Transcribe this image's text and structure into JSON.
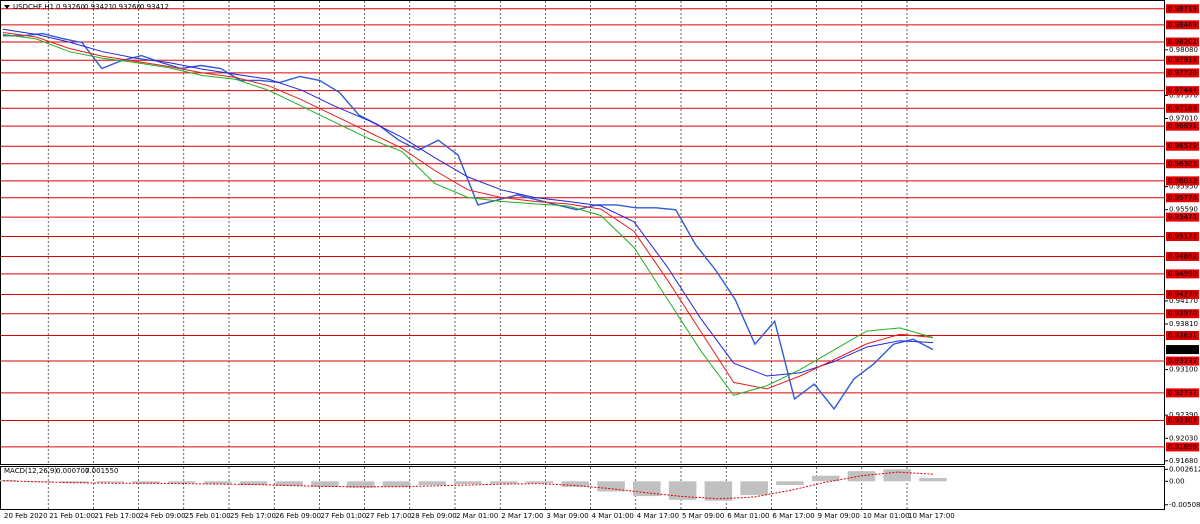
{
  "header": {
    "symbol": "USDCHF,H1",
    "ohlc": [
      "0.93260",
      "0.93421",
      "0.93260",
      "0.93412"
    ]
  },
  "time_labels": [
    "20 Feb 2020",
    "21 Feb 01:00",
    "21 Feb 17:00",
    "24 Feb 09:00",
    "25 Feb 01:00",
    "25 Feb 17:00",
    "26 Feb 09:00",
    "27 Feb 01:00",
    "27 Feb 17:00",
    "28 Feb 09:00",
    "2 Mar 01:00",
    "2 Mar 17:00",
    "3 Mar 09:00",
    "4 Mar 01:00",
    "4 Mar 17:00",
    "5 Mar 09:00",
    "6 Mar 01:00",
    "6 Mar 17:00",
    "9 Mar 09:00",
    "10 Mar 01:00",
    "10 Mar 17:00"
  ],
  "chart_data": [
    {
      "type": "line",
      "ylim": [
        0.9163,
        0.9884
      ],
      "yticks": [
        {
          "value": 0.9808,
          "label": "0.98080"
        },
        {
          "value": 0.9737,
          "label": "0.97370"
        },
        {
          "value": 0.9701,
          "label": "0.97010"
        },
        {
          "value": 0.9595,
          "label": "0.95950"
        },
        {
          "value": 0.9559,
          "label": "0.95590"
        },
        {
          "value": 0.9417,
          "label": "0.94170"
        },
        {
          "value": 0.9381,
          "label": "0.93810"
        },
        {
          "value": 0.931,
          "label": "0.93100"
        },
        {
          "value": 0.9239,
          "label": "0.92390"
        },
        {
          "value": 0.9203,
          "label": "0.92030"
        },
        {
          "value": 0.9168,
          "label": "0.91680"
        }
      ],
      "levels": [
        {
          "value": 0.98719,
          "label": "0.98719"
        },
        {
          "value": 0.98469,
          "label": "0.98469"
        },
        {
          "value": 0.98201,
          "label": "0.98201"
        },
        {
          "value": 0.97918,
          "label": "0.97918"
        },
        {
          "value": 0.9772,
          "label": "0.97720"
        },
        {
          "value": 0.97444,
          "label": "0.97444"
        },
        {
          "value": 0.97169,
          "label": "0.97169"
        },
        {
          "value": 0.96891,
          "label": "0.96891"
        },
        {
          "value": 0.96579,
          "label": "0.96579"
        },
        {
          "value": 0.96305,
          "label": "0.96305"
        },
        {
          "value": 0.96039,
          "label": "0.96039"
        },
        {
          "value": 0.95776,
          "label": "0.95776"
        },
        {
          "value": 0.95475,
          "label": "0.95475"
        },
        {
          "value": 0.95172,
          "label": "0.95172"
        },
        {
          "value": 0.94862,
          "label": "0.94862"
        },
        {
          "value": 0.9459,
          "label": "0.94590"
        },
        {
          "value": 0.9427,
          "label": "0.94270"
        },
        {
          "value": 0.9397,
          "label": "0.93970"
        },
        {
          "value": 0.93631,
          "label": "0.93631"
        },
        {
          "value": 0.93233,
          "label": "0.93233"
        },
        {
          "value": 0.92737,
          "label": "0.92737"
        },
        {
          "value": 0.92307,
          "label": "0.92307"
        },
        {
          "value": 0.91896,
          "label": "0.91896"
        }
      ],
      "level_color": "#e00000",
      "current_price": {
        "value": 0.93412,
        "label": "0.93412"
      },
      "series": [
        {
          "color": "#2f5bd3",
          "values": [
            0.983,
            0.983,
            0.98332,
            0.98254,
            0.98192,
            0.97789,
            0.97913,
            0.9799,
            0.97882,
            0.97789,
            0.97835,
            0.97789,
            0.97603,
            0.97603,
            0.97572,
            0.97665,
            0.97603,
            0.97417,
            0.9706,
            0.96905,
            0.96673,
            0.96518,
            0.96673,
            0.9644,
            0.95665,
            0.95743,
            0.9582,
            0.95743,
            0.95665,
            0.95588,
            0.95665,
            0.95665,
            0.95619,
            0.95619,
            0.95588,
            0.95045,
            0.94658,
            0.94193,
            0.93495,
            0.93852,
            0.92643,
            0.92875,
            0.92488,
            0.92953,
            0.93185,
            0.93495,
            0.93573,
            0.93412
          ]
        },
        {
          "color": "#2424e0",
          "values": [
            0.984,
            0.9832,
            0.982,
            0.9805,
            0.9795,
            0.9788,
            0.9778,
            0.977,
            0.9762,
            0.9745,
            0.972,
            0.9698,
            0.9672,
            0.964,
            0.961,
            0.959,
            0.9578,
            0.9572,
            0.9565,
            0.954,
            0.947,
            0.939,
            0.932,
            0.93,
            0.9305,
            0.9322,
            0.9345,
            0.9355,
            0.9352
          ]
        },
        {
          "color": "#e02020",
          "values": [
            0.9835,
            0.9828,
            0.981,
            0.9798,
            0.979,
            0.9782,
            0.9772,
            0.9765,
            0.9752,
            0.973,
            0.9705,
            0.968,
            0.9655,
            0.962,
            0.959,
            0.9578,
            0.9572,
            0.9568,
            0.956,
            0.9525,
            0.945,
            0.937,
            0.929,
            0.928,
            0.93,
            0.9325,
            0.935,
            0.9365,
            0.936
          ]
        },
        {
          "color": "#20b020",
          "values": [
            0.9832,
            0.9825,
            0.9805,
            0.9795,
            0.9788,
            0.978,
            0.9768,
            0.9762,
            0.9745,
            0.972,
            0.9695,
            0.967,
            0.965,
            0.96,
            0.9578,
            0.9572,
            0.9568,
            0.9565,
            0.955,
            0.95,
            0.942,
            0.934,
            0.927,
            0.9285,
            0.931,
            0.934,
            0.937,
            0.9375,
            0.936
          ]
        }
      ]
    },
    {
      "type": "bar",
      "title": "MACD(12,26,9)",
      "readouts": [
        "0.000707",
        "0.001550"
      ],
      "ylim": [
        -0.006,
        0.0031
      ],
      "yticks": [
        {
          "value": 0.002612,
          "label": "0.002612"
        },
        {
          "value": 0,
          "label": "0.00"
        },
        {
          "value": -0.005087,
          "label": "-0.005087"
        }
      ],
      "series": [
        {
          "color": "#c0c0c0",
          "values": [
            0.0003,
            -0.0002,
            -0.0004,
            -0.0003,
            -0.0005,
            -0.0004,
            -0.0006,
            -0.0008,
            -0.001,
            -0.0012,
            -0.0014,
            -0.0012,
            -0.0008,
            -0.0006,
            -0.0005,
            -0.0004,
            -0.0012,
            -0.0022,
            -0.0032,
            -0.004,
            -0.0042,
            -0.003,
            -0.0008,
            0.0012,
            0.0022,
            0.0026,
            0.000707
          ]
        },
        {
          "color": "#e00000",
          "values": [
            0.0001,
            -0.0001,
            -0.0003,
            -0.0004,
            -0.0004,
            -0.0005,
            -0.0006,
            -0.0007,
            -0.0009,
            -0.0011,
            -0.0012,
            -0.0012,
            -0.001,
            -0.0008,
            -0.0006,
            -0.0005,
            -0.0009,
            -0.0016,
            -0.0025,
            -0.0033,
            -0.0038,
            -0.0034,
            -0.002,
            -0.0002,
            0.0012,
            0.002,
            0.00155
          ]
        }
      ]
    }
  ]
}
